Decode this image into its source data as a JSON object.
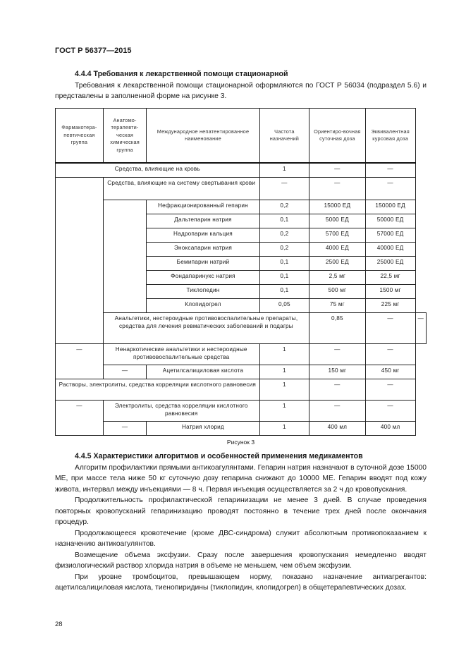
{
  "header": "ГОСТ Р 56377—2015",
  "section1": {
    "title": "4.4.4 Требования к лекарственной помощи стационарной",
    "text": "Требования к лекарственной помощи стационарной оформляются по ГОСТ Р 56034 (подраздел 5.6) и представлены в заполненной форме на рисунке 3."
  },
  "table": {
    "headers": [
      "Фармакотера-певтическая группа",
      "Анатомо-терапевти-ческая химическая группа",
      "Международное непатентированное наименование",
      "Частота назначений",
      "Ориентиро-вочная суточная доза",
      "Эквивалентная курсовая доза"
    ],
    "rows": {
      "a": {
        "name": "Средства, влияющие на кровь",
        "freq": "1",
        "daily": "—",
        "course": "—"
      },
      "b": {
        "name": "Средства, влияющие на систему свертывания крови",
        "freq": "—",
        "daily": "—",
        "course": "—"
      },
      "drugs": [
        {
          "name": "Нефракционированный гепарин",
          "freq": "0,2",
          "daily": "15000 ЕД",
          "course": "150000 ЕД"
        },
        {
          "name": "Дальтепарин натрия",
          "freq": "0,1",
          "daily": "5000 ЕД",
          "course": "50000 ЕД"
        },
        {
          "name": "Надропарин кальция",
          "freq": "0,2",
          "daily": "5700 ЕД",
          "course": "57000 ЕД"
        },
        {
          "name": "Эноксапарин натрия",
          "freq": "0,2",
          "daily": "4000 ЕД",
          "course": "40000 ЕД"
        },
        {
          "name": "Бемипарин натрий",
          "freq": "0,1",
          "daily": "2500 ЕД",
          "course": "25000 ЕД"
        },
        {
          "name": "Фондапаринукс натрия",
          "freq": "0,1",
          "daily": "2,5 мг",
          "course": "22,5 мг"
        },
        {
          "name": "Тиклопедин",
          "freq": "0,1",
          "daily": "500 мг",
          "course": "1500 мг"
        },
        {
          "name": "Клопидогрел",
          "freq": "0,05",
          "daily": "75 мг",
          "course": "225 мг"
        }
      ],
      "l": {
        "name": "Анальгетики, нестероидные противовоспалительные препараты, средства для лечения ревматических заболеваний и подагры",
        "freq": "0,85",
        "daily": "—",
        "course": "—"
      },
      "m": {
        "c1": "—",
        "name": "Ненаркотические анальгетики и нестероидные противовоспалительные средства",
        "freq": "1",
        "daily": "—",
        "course": "—"
      },
      "n": {
        "c2": "—",
        "name": "Ацетилсалициловая кислота",
        "freq": "1",
        "daily": "150 мг",
        "course": "450 мг"
      },
      "o": {
        "name": "Растворы, электролиты, средства корреляции кислотного равновесия",
        "freq": "1",
        "daily": "—",
        "course": "—"
      },
      "p": {
        "c1": "—",
        "name": "Электролиты, средства корреляции кислотного равновесия",
        "freq": "1",
        "daily": "—",
        "course": "—"
      },
      "q": {
        "c2": "—",
        "name": "Натрия хлорид",
        "freq": "1",
        "daily": "400 мл",
        "course": "400 мл"
      }
    }
  },
  "caption": "Рисунок 3",
  "section2": {
    "title": "4.4.5 Характеристики алгоритмов и особенностей применения медикаментов",
    "paragraphs": [
      "Алгоритм профилактики прямыми антикоагулянтами. Гепарин натрия назначают в суточной дозе 15000 МЕ, при массе тела ниже 50 кг суточную дозу гепарина снижают до 10000 МЕ. Гепарин вводят под кожу живота, интервал между инъекциями — 8 ч. Первая инъекция осуществляется за 2 ч до кровопускания.",
      "Продолжительность профилактической гепаринизации не менее 3 дней. В случае проведения повторных кровопусканий гепаринизацию проводят постоянно в течение трех дней после окончания процедур.",
      "Продолжающееся кровотечение (кроме ДВС-синдрома) служит абсолютным противопоказанием к назначению антикоагулянтов.",
      "Возмещение объема эксфузии. Сразу после завершения кровопускания немедленно вводят физиологический раствор хлорида натрия в объеме не меньшем, чем объем эксфузии.",
      "При уровне тромбоцитов, превышающем норму, показано назначение антиагрегантов: ацетилсалициловая кислота, тиенопиридины (тиклопидин, клопидогрел) в общетерапевтических дозах."
    ]
  },
  "page_number": "28"
}
